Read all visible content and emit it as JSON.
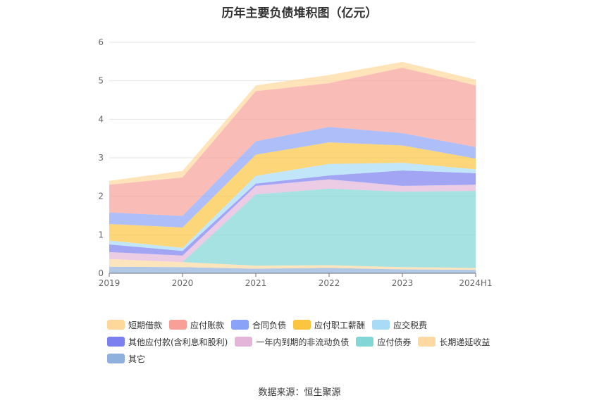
{
  "title": "历年主要负债堆积图（亿元）",
  "source": "数据来源：恒生聚源",
  "chart_data": {
    "type": "area",
    "stacked": true,
    "title": "历年主要负债堆积图（亿元）",
    "x": [
      "2019",
      "2020",
      "2021",
      "2022",
      "2023",
      "2024H1"
    ],
    "yticks": [
      "0",
      "1",
      "2",
      "3",
      "4",
      "5",
      "6"
    ],
    "ylim": [
      0,
      6
    ],
    "grid": true,
    "legend_position": "bottom",
    "series": [
      {
        "name": "其它",
        "color": "#8fb0dc",
        "values": [
          0.17,
          0.16,
          0.12,
          0.14,
          0.1,
          0.09
        ]
      },
      {
        "name": "长期递延收益",
        "color": "#fbd9a0",
        "values": [
          0.2,
          0.13,
          0.08,
          0.07,
          0.06,
          0.05
        ]
      },
      {
        "name": "应付债券",
        "color": "#82d6d6",
        "values": [
          0.0,
          0.0,
          1.85,
          1.99,
          1.96,
          2.0
        ]
      },
      {
        "name": "一年内到期的非流动负债",
        "color": "#e4b5d8",
        "values": [
          0.18,
          0.17,
          0.22,
          0.24,
          0.15,
          0.16
        ]
      },
      {
        "name": "其他应付款(含利息和股利)",
        "color": "#7b7ff0",
        "values": [
          0.2,
          0.12,
          0.06,
          0.1,
          0.4,
          0.3
        ]
      },
      {
        "name": "应交税费",
        "color": "#a8dcf6",
        "values": [
          0.1,
          0.08,
          0.2,
          0.3,
          0.2,
          0.1
        ]
      },
      {
        "name": "应付职工薪酬",
        "color": "#fbc540",
        "values": [
          0.43,
          0.53,
          0.55,
          0.56,
          0.45,
          0.28
        ]
      },
      {
        "name": "合同负债",
        "color": "#8aa2f7",
        "values": [
          0.3,
          0.3,
          0.35,
          0.4,
          0.32,
          0.3
        ]
      },
      {
        "name": "应付账款",
        "color": "#f8a098",
        "values": [
          0.72,
          1.0,
          1.3,
          1.14,
          1.7,
          1.6
        ]
      },
      {
        "name": "短期借款",
        "color": "#fdd89a",
        "values": [
          0.1,
          0.17,
          0.15,
          0.21,
          0.15,
          0.15
        ]
      }
    ]
  },
  "legend_order": [
    "短期借款",
    "应付账款",
    "合同负债",
    "应付职工薪酬",
    "应交税费",
    "其他应付款(含利息和股利)",
    "一年内到期的非流动负债",
    "应付债券",
    "长期递延收益",
    "其它"
  ]
}
